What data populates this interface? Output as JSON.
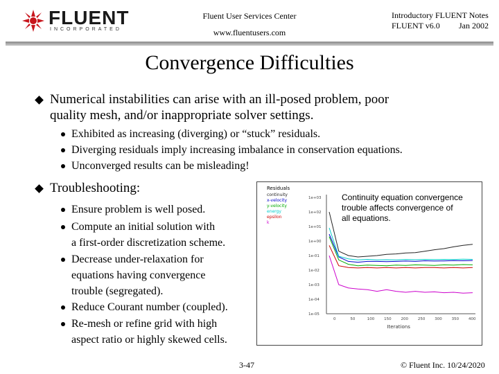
{
  "header": {
    "logo_text": "FLUENT",
    "logo_sub": "INCORPORATED",
    "center_line1": "Fluent User Services Center",
    "center_line2": "www.fluentusers.com",
    "right_line1": "Introductory FLUENT Notes",
    "right_line2_left": "FLUENT v6.0",
    "right_line2_right": "Jan 2002"
  },
  "slide": {
    "title": "Convergence Difficulties",
    "bullet1": {
      "text_line1": "Numerical instabilities can arise with an ill-posed problem, poor",
      "text_line2": "quality mesh, and/or inappropriate solver settings.",
      "subs": [
        "Exhibited as increasing (diverging) or “stuck” residuals.",
        "Diverging residuals imply increasing imbalance in conservation equations.",
        "Unconverged results can be misleading!"
      ]
    },
    "bullet2": {
      "text": "Troubleshooting:",
      "subs": [
        {
          "line1": "Ensure problem is well posed."
        },
        {
          "line1": "Compute an initial solution with",
          "line2": "a first-order discretization scheme."
        },
        {
          "line1": "Decrease under-relaxation for",
          "line2": "equations having convergence",
          "line3": "trouble (segregated)."
        },
        {
          "line1": "Reduce Courant number (coupled)."
        },
        {
          "line1": "Re-mesh or refine grid with high",
          "line2": "aspect ratio or highly skewed cells."
        }
      ]
    }
  },
  "chart_note": {
    "line1": "Continuity equation convergence",
    "line2": "trouble affects convergence of",
    "line3": "all equations."
  },
  "chart_data": {
    "type": "line",
    "legend_title": "Residuals",
    "legend": [
      "continuity",
      "x-velocity",
      "y-velocity",
      "energy",
      "epsilon",
      "k"
    ],
    "xlabel": "Iterations",
    "ylabel": "",
    "yscale": "log",
    "yticks": [
      "1e+03",
      "1e+02",
      "1e+01",
      "1e+00",
      "1e-01",
      "1e-02",
      "1e-03",
      "1e-04",
      "1e-05"
    ],
    "xticks": [
      "0",
      "50",
      "100",
      "150",
      "200",
      "250",
      "300",
      "350",
      "400"
    ],
    "series_colors": [
      "#222222",
      "#0000cc",
      "#00aa00",
      "#00cccc",
      "#cc0000",
      "#cc00cc"
    ],
    "series": [
      {
        "values": [
          100.0,
          0.2,
          0.1,
          0.08,
          0.09,
          0.1,
          0.12,
          0.13,
          0.15,
          0.16,
          0.2,
          0.25,
          0.3,
          0.4,
          0.5,
          0.6
        ]
      },
      {
        "values": [
          3.0,
          0.08,
          0.04,
          0.035,
          0.04,
          0.04,
          0.038,
          0.04,
          0.042,
          0.04,
          0.044,
          0.042,
          0.043,
          0.045,
          0.044,
          0.046
        ]
      },
      {
        "values": [
          2.0,
          0.05,
          0.025,
          0.02,
          0.022,
          0.021,
          0.02,
          0.022,
          0.021,
          0.023,
          0.022,
          0.021,
          0.023,
          0.022,
          0.024,
          0.023
        ]
      },
      {
        "values": [
          8.0,
          0.09,
          0.06,
          0.05,
          0.055,
          0.05,
          0.052,
          0.05,
          0.054,
          0.052,
          0.055,
          0.053,
          0.055,
          0.054,
          0.056,
          0.055
        ]
      },
      {
        "values": [
          0.5,
          0.02,
          0.015,
          0.014,
          0.015,
          0.014,
          0.015,
          0.014,
          0.015,
          0.014,
          0.015,
          0.015,
          0.014,
          0.015,
          0.014,
          0.015
        ]
      },
      {
        "values": [
          0.1,
          0.001,
          0.0006,
          0.0005,
          0.00045,
          0.00035,
          0.00045,
          0.00035,
          0.0003,
          0.00035,
          0.0003,
          0.00032,
          0.00028,
          0.0003,
          0.00026,
          0.00028
        ]
      }
    ]
  },
  "footer": {
    "page": "3-47",
    "copyright": "© Fluent Inc. 10/24/2020"
  }
}
